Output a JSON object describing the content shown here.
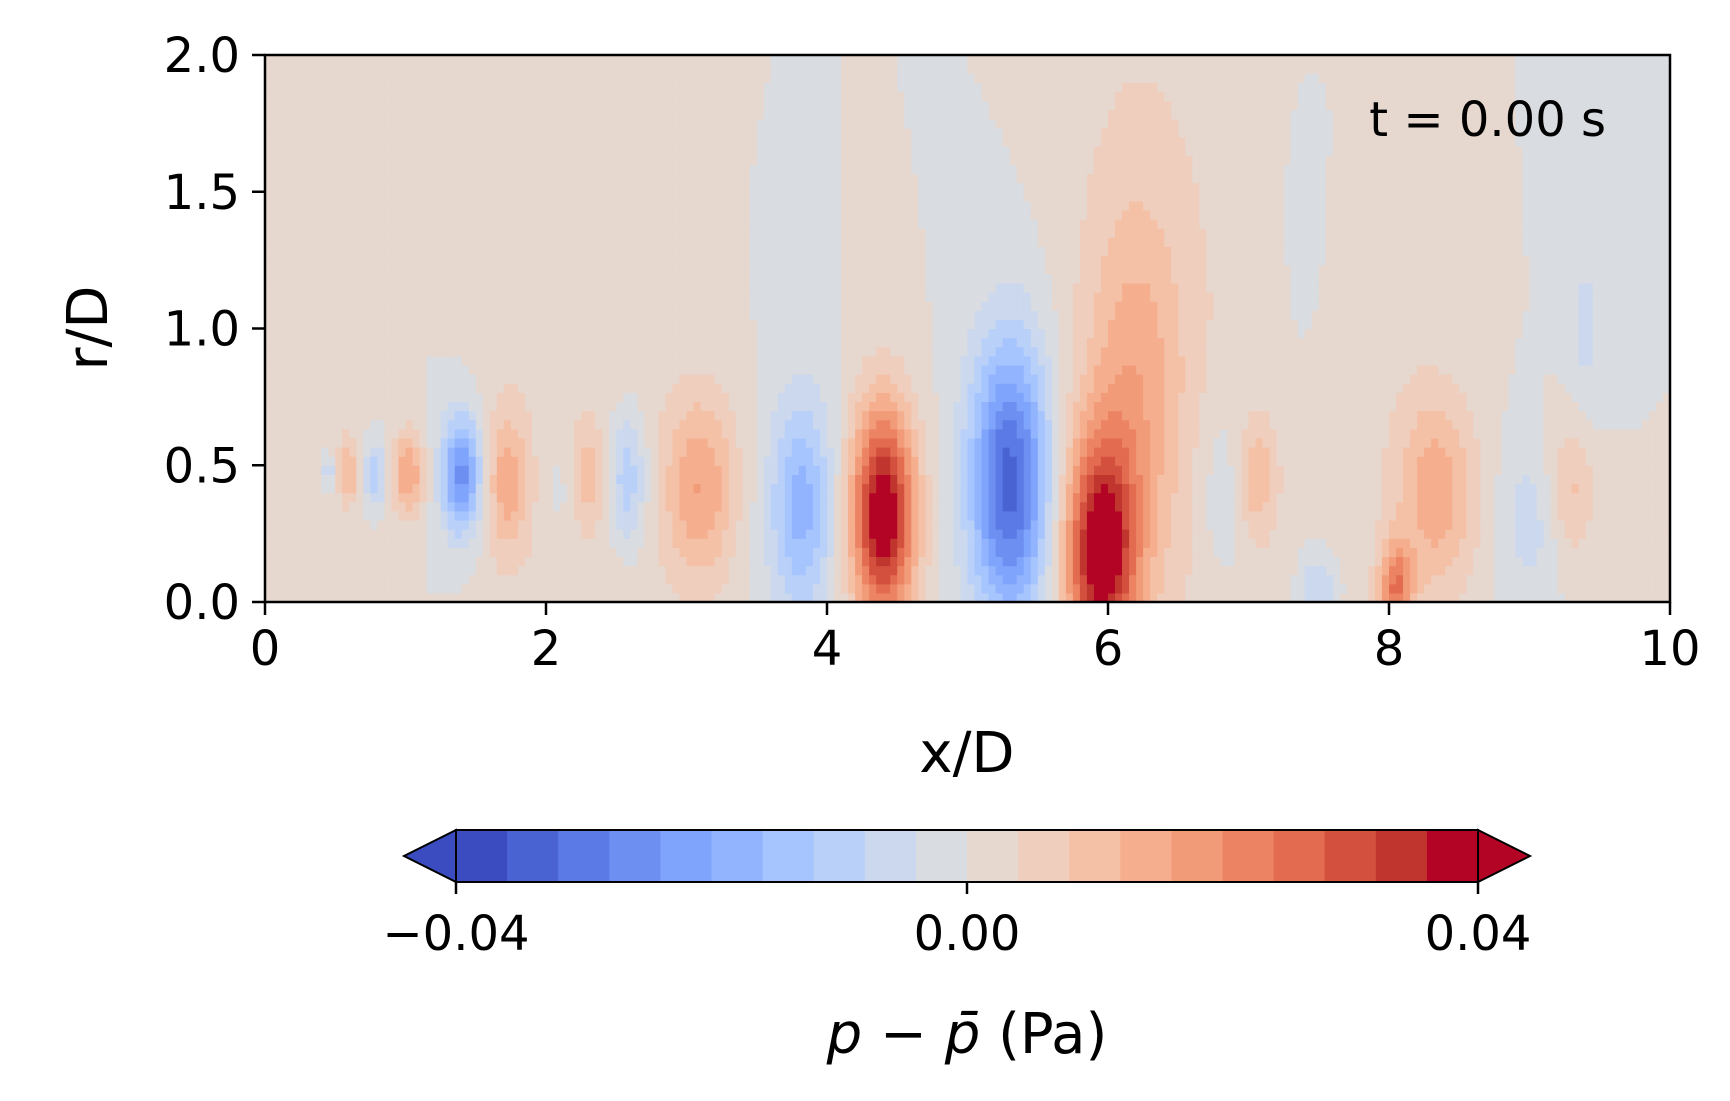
{
  "chart_data": {
    "type": "heatmap",
    "subtype": "filled-contour",
    "xlabel": "x/D",
    "ylabel": "r/D",
    "xlim": [
      0,
      10
    ],
    "ylim": [
      0,
      2.0
    ],
    "xticks": [
      0,
      2,
      4,
      6,
      8,
      10
    ],
    "xtick_labels": [
      "0",
      "2",
      "4",
      "6",
      "8",
      "10"
    ],
    "yticks": [
      0,
      0.5,
      1.0,
      1.5,
      2.0
    ],
    "ytick_labels": [
      "0.0",
      "0.5",
      "1.0",
      "1.5",
      "2.0"
    ],
    "grid": false,
    "annotation": "t = 0.00 s",
    "colormap": "coolwarm",
    "colorbar": {
      "orientation": "horizontal",
      "placement": "bottom",
      "label_main": "p − p̄",
      "label_unit": "(Pa)",
      "range": [
        -0.04,
        0.04
      ],
      "extend": "both",
      "levels": 20,
      "ticks": [
        -0.04,
        0.0,
        0.04
      ],
      "tick_labels": [
        "−0.04",
        "0.00",
        "0.04"
      ],
      "colors": [
        "#3b4cc0",
        "#4a63d3",
        "#5b7ae5",
        "#6d8ff1",
        "#7fa4fb",
        "#92b4fe",
        "#a6c4fe",
        "#b9d0f9",
        "#cbd8ee",
        "#d9dce1",
        "#e6d7cf",
        "#efcebd",
        "#f4c0a6",
        "#f5af8f",
        "#f29b78",
        "#ec8463",
        "#e26b50",
        "#d4503e",
        "#c1352f",
        "#b40426"
      ]
    },
    "field_background_value": 0.0,
    "features": [
      {
        "kind": "band",
        "x": 0.3,
        "width": 1.0,
        "r_extent": 2.0,
        "value": 0.003
      },
      {
        "kind": "band",
        "x": 2.2,
        "width": 1.4,
        "r_extent": 2.0,
        "value": 0.003
      },
      {
        "kind": "band",
        "x": 6.5,
        "width": 1.8,
        "r_extent": 2.0,
        "value": 0.003
      },
      {
        "kind": "band",
        "x": 7.9,
        "width": 1.0,
        "r_extent": 1.4,
        "value": 0.002
      },
      {
        "kind": "blob",
        "x": 0.45,
        "r": 0.48,
        "sx": 0.04,
        "sr": 0.05,
        "value": -0.01
      },
      {
        "kind": "blob",
        "x": 0.6,
        "r": 0.48,
        "sx": 0.05,
        "sr": 0.07,
        "value": 0.01
      },
      {
        "kind": "blob",
        "x": 0.78,
        "r": 0.47,
        "sx": 0.06,
        "sr": 0.09,
        "value": -0.012
      },
      {
        "kind": "blob",
        "x": 1.02,
        "r": 0.47,
        "sx": 0.08,
        "sr": 0.11,
        "value": 0.016
      },
      {
        "kind": "blob",
        "x": 1.4,
        "r": 0.47,
        "sx": 0.1,
        "sr": 0.15,
        "value": -0.026
      },
      {
        "kind": "blob",
        "x": 1.72,
        "r": 0.44,
        "sx": 0.1,
        "sr": 0.17,
        "value": 0.013
      },
      {
        "kind": "blob",
        "x": 2.1,
        "r": 0.42,
        "sx": 0.08,
        "sr": 0.14,
        "value": -0.004
      },
      {
        "kind": "blob",
        "x": 2.3,
        "r": 0.46,
        "sx": 0.08,
        "sr": 0.12,
        "value": 0.008
      },
      {
        "kind": "blob",
        "x": 2.58,
        "r": 0.45,
        "sx": 0.1,
        "sr": 0.18,
        "value": -0.013
      },
      {
        "kind": "blob",
        "x": 3.1,
        "r": 0.42,
        "sx": 0.18,
        "sr": 0.25,
        "value": 0.016
      },
      {
        "kind": "blob",
        "x": 3.82,
        "r": 0.35,
        "sx": 0.16,
        "sr": 0.28,
        "value": -0.018
      },
      {
        "kind": "blob",
        "x": 4.4,
        "r": 0.32,
        "sx": 0.16,
        "sr": 0.28,
        "value": 0.042
      },
      {
        "kind": "blob",
        "x": 5.3,
        "r": 0.44,
        "sx": 0.2,
        "sr": 0.36,
        "value": -0.034
      },
      {
        "kind": "blob",
        "x": 5.95,
        "r": 0.18,
        "sx": 0.18,
        "sr": 0.3,
        "value": 0.038
      },
      {
        "kind": "blob",
        "x": 6.2,
        "r": 0.8,
        "sx": 0.25,
        "sr": 0.5,
        "value": 0.012
      },
      {
        "kind": "blob",
        "x": 6.85,
        "r": 0.4,
        "sx": 0.15,
        "sr": 0.25,
        "value": -0.006
      },
      {
        "kind": "blob",
        "x": 7.05,
        "r": 0.45,
        "sx": 0.1,
        "sr": 0.15,
        "value": 0.011
      },
      {
        "kind": "blob",
        "x": 7.5,
        "r": 0.05,
        "sx": 0.1,
        "sr": 0.1,
        "value": -0.01
      },
      {
        "kind": "blob",
        "x": 8.05,
        "r": 0.05,
        "sx": 0.08,
        "sr": 0.12,
        "value": 0.022
      },
      {
        "kind": "blob",
        "x": 8.35,
        "r": 0.4,
        "sx": 0.2,
        "sr": 0.26,
        "value": 0.014
      },
      {
        "kind": "blob",
        "x": 9.0,
        "r": 0.3,
        "sx": 0.15,
        "sr": 0.2,
        "value": -0.006
      },
      {
        "kind": "blob",
        "x": 9.3,
        "r": 0.42,
        "sx": 0.12,
        "sr": 0.18,
        "value": 0.009
      },
      {
        "kind": "blob",
        "x": 7.4,
        "r": 1.4,
        "sx": 0.1,
        "sr": 0.3,
        "value": -0.005
      },
      {
        "kind": "blob",
        "x": 9.4,
        "r": 1.0,
        "sx": 0.1,
        "sr": 0.25,
        "value": -0.005
      }
    ]
  }
}
